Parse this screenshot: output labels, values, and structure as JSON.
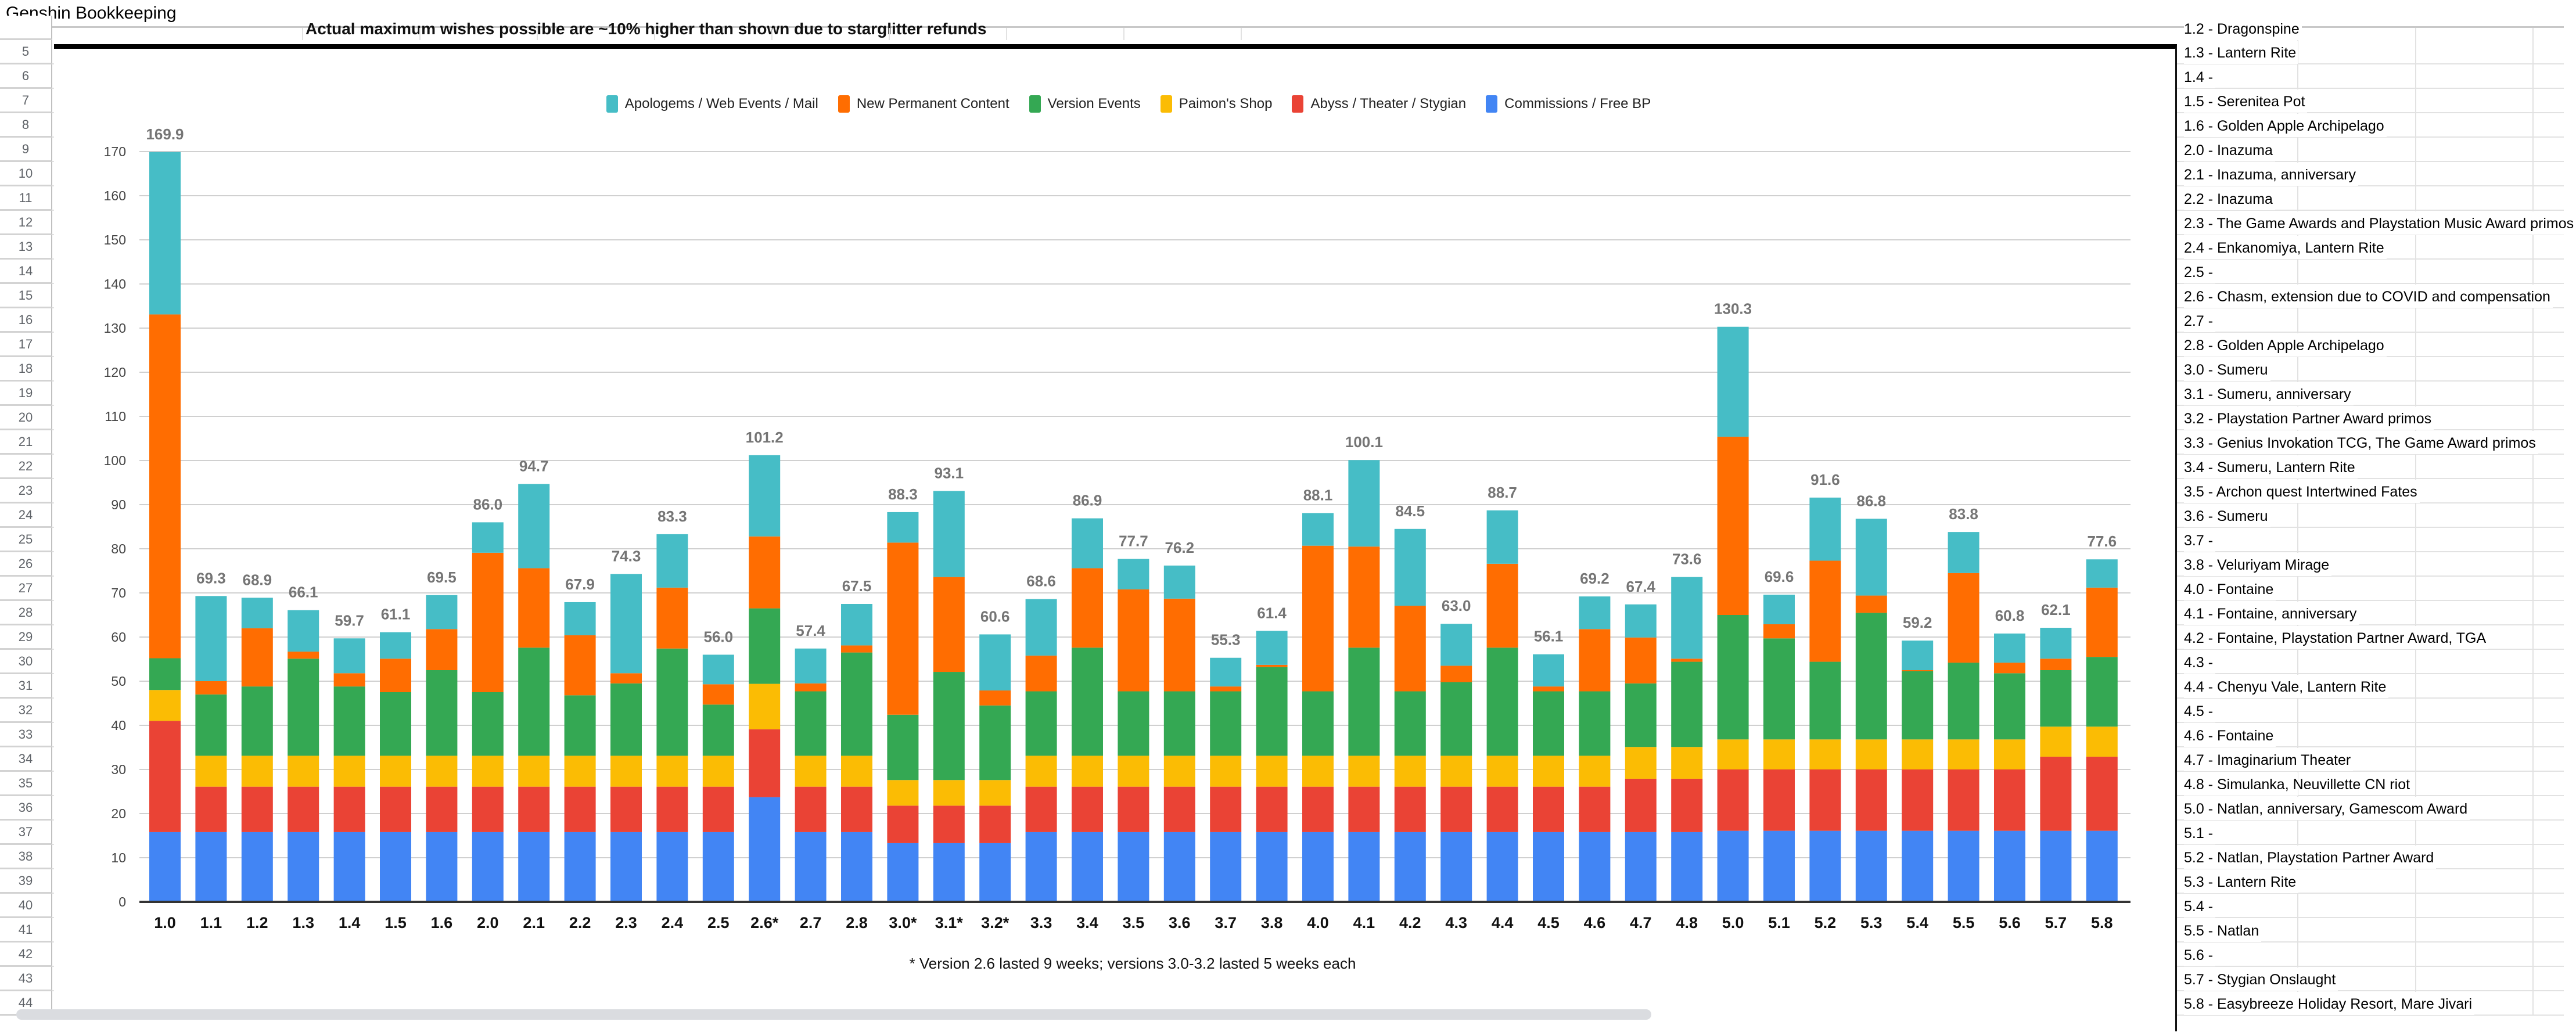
{
  "app": {
    "title": "Genshin Bookkeeping"
  },
  "sheet": {
    "row_numbers": [
      5,
      6,
      7,
      8,
      9,
      10,
      11,
      12,
      13,
      14,
      15,
      16,
      17,
      18,
      19,
      20,
      21,
      22,
      23,
      24,
      25,
      26,
      27,
      28,
      29,
      30,
      31,
      32,
      33,
      34,
      35,
      36,
      37,
      38,
      39,
      40,
      41,
      42,
      43,
      44
    ],
    "row4_note": "Actual maximum wishes possible are ~10% higher than shown due to starglitter refunds",
    "right_column_top_partial": "1.2 - Dragonspine",
    "right_column": [
      "1.3 - Lantern Rite",
      "1.4 -",
      "1.5 - Serenitea Pot",
      "1.6 - Golden Apple Archipelago",
      "2.0 - Inazuma",
      "2.1 - Inazuma, anniversary",
      "2.2 - Inazuma",
      "2.3 - The Game Awards and Playstation Music Award primos",
      "2.4 - Enkanomiya, Lantern Rite",
      "2.5 -",
      "2.6 - Chasm, extension due to COVID and compensation",
      "2.7 -",
      "2.8 - Golden Apple Archipelago",
      "3.0 - Sumeru",
      "3.1 - Sumeru, anniversary",
      "3.2 - Playstation Partner Award primos",
      "3.3 - Genius Invokation TCG, The Game Award primos",
      "3.4 - Sumeru, Lantern Rite",
      "3.5 - Archon quest Intertwined Fates",
      "3.6 - Sumeru",
      "3.7 -",
      "3.8 - Veluriyam Mirage",
      "4.0 - Fontaine",
      "4.1 - Fontaine, anniversary",
      "4.2 - Fontaine, Playstation Partner Award, TGA",
      "4.3 -",
      "4.4 - Chenyu Vale, Lantern Rite",
      "4.5 -",
      "4.6 - Fontaine",
      "4.7 - Imaginarium Theater",
      "4.8 - Simulanka, Neuvillette CN riot",
      "5.0 - Natlan, anniversary, Gamescom Award",
      "5.1 -",
      "5.2 - Natlan, Playstation Partner Award",
      "5.3 - Lantern Rite",
      "5.4 -",
      "5.5 - Natlan",
      "5.6 -",
      "5.7 - Stygian Onslaught",
      "5.8 - Easybreeze Holiday Resort, Mare Jivari"
    ]
  },
  "chart_data": {
    "type": "bar",
    "stacked": true,
    "grid": true,
    "legend_position": "top",
    "ylim": [
      0,
      170
    ],
    "yticks": [
      0,
      10,
      20,
      30,
      40,
      50,
      60,
      70,
      80,
      90,
      100,
      110,
      120,
      130,
      140,
      150,
      160,
      170
    ],
    "categories": [
      "1.0",
      "1.1",
      "1.2",
      "1.3",
      "1.4",
      "1.5",
      "1.6",
      "2.0",
      "2.1",
      "2.2",
      "2.3",
      "2.4",
      "2.5",
      "2.6*",
      "2.7",
      "2.8",
      "3.0*",
      "3.1*",
      "3.2*",
      "3.3",
      "3.4",
      "3.5",
      "3.6",
      "3.7",
      "3.8",
      "4.0",
      "4.1",
      "4.2",
      "4.3",
      "4.4",
      "4.5",
      "4.6",
      "4.7",
      "4.8",
      "5.0",
      "5.1",
      "5.2",
      "5.3",
      "5.4",
      "5.5",
      "5.6",
      "5.7",
      "5.8"
    ],
    "totals": [
      "169.9",
      "69.3",
      "68.9",
      "66.1",
      "59.7",
      "61.1",
      "69.5",
      "86.0",
      "94.7",
      "67.9",
      "74.3",
      "83.3",
      "56.0",
      "101.2",
      "57.4",
      "67.5",
      "88.3",
      "93.1",
      "60.6",
      "68.6",
      "86.9",
      "77.7",
      "76.2",
      "55.3",
      "61.4",
      "88.1",
      "100.1",
      "84.5",
      "63.0",
      "88.7",
      "56.1",
      "69.2",
      "67.4",
      "73.6",
      "130.3",
      "69.6",
      "91.6",
      "86.8",
      "59.2",
      "83.8",
      "60.8",
      "62.1",
      "77.6"
    ],
    "legend_order": [
      "Apologems / Web Events / Mail",
      "New Permanent Content",
      "Version Events",
      "Paimon's Shop",
      "Abyss / Theater / Stygian",
      "Commissions / Free BP"
    ],
    "series": [
      {
        "name": "Commissions / Free BP",
        "color": "#4285F4",
        "values": [
          15.8,
          15.8,
          15.8,
          15.8,
          15.8,
          15.8,
          15.8,
          15.8,
          15.8,
          15.8,
          15.8,
          15.8,
          15.8,
          23.7,
          15.8,
          15.8,
          13.3,
          13.3,
          13.3,
          15.8,
          15.8,
          15.8,
          15.8,
          15.8,
          15.8,
          15.8,
          15.8,
          15.8,
          15.8,
          15.8,
          15.8,
          15.8,
          15.8,
          15.8,
          16.1,
          16.1,
          16.1,
          16.1,
          16.1,
          16.1,
          16.1,
          16.1,
          16.1
        ]
      },
      {
        "name": "Abyss / Theater / Stygian",
        "color": "#EA4335",
        "values": [
          25.2,
          10.3,
          10.3,
          10.3,
          10.3,
          10.3,
          10.3,
          10.3,
          10.3,
          10.3,
          10.3,
          10.3,
          10.3,
          15.4,
          10.3,
          10.3,
          8.5,
          8.5,
          8.5,
          10.3,
          10.3,
          10.3,
          10.3,
          10.3,
          10.3,
          10.3,
          10.3,
          10.3,
          10.3,
          10.3,
          10.3,
          10.3,
          12.1,
          12.1,
          13.9,
          13.9,
          13.9,
          13.9,
          13.9,
          13.9,
          13.9,
          16.8,
          16.8
        ]
      },
      {
        "name": "Paimon's Shop",
        "color": "#FBBC04",
        "values": [
          7.0,
          7.0,
          7.0,
          7.0,
          7.0,
          7.0,
          7.0,
          7.0,
          7.0,
          7.0,
          7.0,
          7.0,
          7.0,
          10.3,
          7.0,
          7.0,
          5.8,
          5.8,
          5.8,
          7.0,
          7.0,
          7.0,
          7.0,
          7.0,
          7.0,
          7.0,
          7.0,
          7.0,
          7.0,
          7.0,
          7.0,
          7.0,
          7.2,
          7.2,
          6.8,
          6.8,
          6.8,
          6.8,
          6.8,
          6.8,
          6.8,
          6.8,
          6.8
        ]
      },
      {
        "name": "Version Events",
        "color": "#34A853",
        "values": [
          7.2,
          13.9,
          15.7,
          22.0,
          15.7,
          14.4,
          19.4,
          14.4,
          24.5,
          13.7,
          16.4,
          24.3,
          11.6,
          17.1,
          14.6,
          23.4,
          14.8,
          24.5,
          16.9,
          14.6,
          24.5,
          14.6,
          14.6,
          14.6,
          20.1,
          14.6,
          24.5,
          14.6,
          16.7,
          24.5,
          14.6,
          14.6,
          14.4,
          19.3,
          28.2,
          22.9,
          17.6,
          28.7,
          15.5,
          17.4,
          15.0,
          12.8,
          15.8
        ]
      },
      {
        "name": "New Permanent Content",
        "color": "#FF6D01",
        "values": [
          77.9,
          3.0,
          13.2,
          1.6,
          3.0,
          7.6,
          9.3,
          31.6,
          18.0,
          13.6,
          2.3,
          13.8,
          4.6,
          16.3,
          1.8,
          1.6,
          39.0,
          21.5,
          3.4,
          8.1,
          18.0,
          23.1,
          21.0,
          1.1,
          0.5,
          33.0,
          22.9,
          19.4,
          3.7,
          19.0,
          1.1,
          14.1,
          10.4,
          0.7,
          40.4,
          3.2,
          22.9,
          3.9,
          0.2,
          20.3,
          2.4,
          2.6,
          15.7
        ]
      },
      {
        "name": "Apologems / Web Events / Mail",
        "color": "#46BDC6",
        "values": [
          36.8,
          19.3,
          6.9,
          9.4,
          7.9,
          6.0,
          7.7,
          6.9,
          19.1,
          7.5,
          22.5,
          12.1,
          6.7,
          18.4,
          7.9,
          9.4,
          6.9,
          19.5,
          12.7,
          12.8,
          11.3,
          6.9,
          7.5,
          6.5,
          7.7,
          7.4,
          19.6,
          17.4,
          9.5,
          12.1,
          7.3,
          7.4,
          7.5,
          18.5,
          24.9,
          6.7,
          14.3,
          17.4,
          6.7,
          9.3,
          6.6,
          7.0,
          6.4
        ]
      }
    ],
    "footnote": "* Version 2.6 lasted 9 weeks; versions 3.0-3.2 lasted 5 weeks each"
  }
}
